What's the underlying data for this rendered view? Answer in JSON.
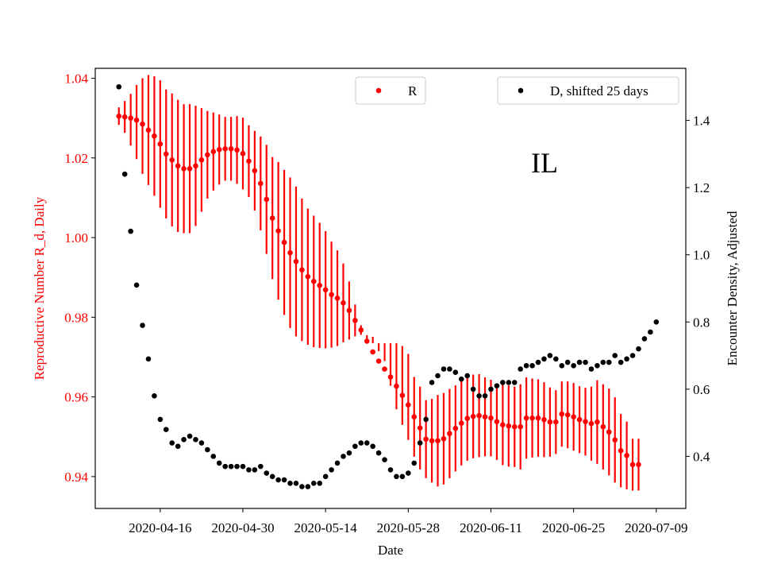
{
  "chart_data": {
    "type": "scatter",
    "title": "",
    "annotation": "IL",
    "xlabel": "Date",
    "ylabel_left": "Reproductive Number R_d, Daily",
    "ylabel_right": "Encounter Density, Adjusted",
    "x_ticks": [
      "2020-04-16",
      "2020-04-30",
      "2020-05-14",
      "2020-05-28",
      "2020-06-11",
      "2020-06-25",
      "2020-07-09"
    ],
    "x_range": [
      "2020-04-05",
      "2020-07-14"
    ],
    "y_left_ticks": [
      "0.94",
      "0.96",
      "0.98",
      "1.00",
      "1.02",
      "1.04"
    ],
    "y_left_range": [
      0.932,
      1.0425
    ],
    "y_right_ticks": [
      "0.4",
      "0.6",
      "0.8",
      "1.0",
      "1.2",
      "1.4"
    ],
    "y_right_range": [
      0.245,
      1.555
    ],
    "grid": false,
    "legend_r_placement": "top-center",
    "legend_d_placement": "top-right",
    "series": [
      {
        "name": "R",
        "color": "#ff0000",
        "axis": "left",
        "start_date": "2020-04-09",
        "values": [
          1.0305,
          1.0303,
          1.03,
          1.0295,
          1.0285,
          1.027,
          1.0255,
          1.0235,
          1.021,
          1.0195,
          1.018,
          1.0173,
          1.0173,
          1.018,
          1.0195,
          1.0208,
          1.0216,
          1.0221,
          1.0223,
          1.0223,
          1.022,
          1.0211,
          1.0192,
          1.0168,
          1.0136,
          1.0096,
          1.0049,
          1.0017,
          0.9988,
          0.9962,
          0.994,
          0.9919,
          0.9902,
          0.989,
          0.988,
          0.9869,
          0.9857,
          0.9848,
          0.9836,
          0.9817,
          0.9792,
          0.9768,
          0.974,
          0.9713,
          0.969,
          0.967,
          0.965,
          0.9627,
          0.9604,
          0.958,
          0.955,
          0.9522,
          0.9494,
          0.949,
          0.949,
          0.9495,
          0.9508,
          0.9521,
          0.9534,
          0.9546,
          0.9551,
          0.9553,
          0.955,
          0.9547,
          0.9538,
          0.953,
          0.9527,
          0.9525,
          0.9525,
          0.9547,
          0.9547,
          0.9547,
          0.9543,
          0.9537,
          0.9537,
          0.9557,
          0.9555,
          0.955,
          0.9543,
          0.9538,
          0.9533,
          0.9537,
          0.9525,
          0.9512,
          0.9492,
          0.9465,
          0.9453,
          0.943,
          0.943
        ],
        "error_low": [
          1.0283,
          1.0263,
          1.0231,
          1.0197,
          1.016,
          1.0132,
          1.0105,
          1.0075,
          1.0048,
          1.0028,
          1.0014,
          1.0011,
          1.0011,
          1.0029,
          1.0065,
          1.0098,
          1.0118,
          1.0133,
          1.0143,
          1.0143,
          1.0135,
          1.0121,
          1.0102,
          1.0068,
          1.0018,
          0.9959,
          0.9896,
          0.9844,
          0.9806,
          0.9773,
          0.9752,
          0.974,
          0.9731,
          0.9725,
          0.9723,
          0.9722,
          0.9724,
          0.9728,
          0.9737,
          0.9744,
          0.9752,
          0.9756,
          0.9755,
          0.9751,
          0.9715,
          0.969,
          0.9628,
          0.9569,
          0.953,
          0.9492,
          0.945,
          0.9418,
          0.9396,
          0.9385,
          0.9375,
          0.938,
          0.9396,
          0.9413,
          0.9428,
          0.944,
          0.9446,
          0.9449,
          0.9451,
          0.9451,
          0.9442,
          0.9429,
          0.9425,
          0.9424,
          0.9418,
          0.9445,
          0.9448,
          0.945,
          0.9449,
          0.945,
          0.9457,
          0.9475,
          0.9471,
          0.9465,
          0.9459,
          0.9453,
          0.944,
          0.9432,
          0.9418,
          0.9403,
          0.9385,
          0.9373,
          0.9368,
          0.9365,
          0.9365
        ],
        "error_high": [
          1.0327,
          1.0343,
          1.0361,
          1.0383,
          1.04,
          1.0408,
          1.0405,
          1.0395,
          1.0372,
          1.0362,
          1.0346,
          1.0335,
          1.0335,
          1.0331,
          1.0325,
          1.0318,
          1.0314,
          1.0309,
          1.0303,
          1.0303,
          1.0305,
          1.0301,
          1.0282,
          1.0268,
          1.0254,
          1.0233,
          1.0202,
          1.019,
          1.017,
          1.0151,
          1.0128,
          1.0098,
          1.0073,
          1.0055,
          1.0037,
          1.0016,
          0.999,
          0.9968,
          0.9935,
          0.989,
          0.9832,
          0.978,
          0.9745,
          0.9735,
          0.9735,
          0.9735,
          0.9735,
          0.9735,
          0.9728,
          0.9708,
          0.965,
          0.9626,
          0.9592,
          0.9595,
          0.9605,
          0.961,
          0.962,
          0.9629,
          0.964,
          0.9652,
          0.9656,
          0.9657,
          0.9649,
          0.9643,
          0.9634,
          0.9631,
          0.9629,
          0.9626,
          0.9632,
          0.9649,
          0.9646,
          0.9644,
          0.9637,
          0.9624,
          0.9617,
          0.9639,
          0.9639,
          0.9635,
          0.9627,
          0.9623,
          0.9626,
          0.9642,
          0.9632,
          0.9621,
          0.9599,
          0.9557,
          0.9538,
          0.9495,
          0.9495
        ]
      },
      {
        "name": "D, shifted 25 days",
        "color": "#000000",
        "axis": "right",
        "start_date": "2020-04-09",
        "values": [
          1.5,
          1.24,
          1.07,
          0.91,
          0.79,
          0.69,
          0.58,
          0.51,
          0.48,
          0.44,
          0.43,
          0.45,
          0.46,
          0.45,
          0.44,
          0.42,
          0.4,
          0.38,
          0.37,
          0.37,
          0.37,
          0.37,
          0.36,
          0.36,
          0.37,
          0.35,
          0.34,
          0.33,
          0.33,
          0.32,
          0.32,
          0.31,
          0.31,
          0.32,
          0.32,
          0.34,
          0.36,
          0.38,
          0.4,
          0.41,
          0.43,
          0.44,
          0.44,
          0.43,
          0.41,
          0.39,
          0.36,
          0.34,
          0.34,
          0.35,
          0.38,
          0.44,
          0.51,
          0.62,
          0.64,
          0.66,
          0.66,
          0.65,
          0.63,
          0.64,
          0.6,
          0.58,
          0.58,
          0.6,
          0.61,
          0.62,
          0.62,
          0.62,
          0.66,
          0.67,
          0.67,
          0.68,
          0.69,
          0.7,
          0.69,
          0.67,
          0.68,
          0.67,
          0.68,
          0.68,
          0.66,
          0.67,
          0.68,
          0.68,
          0.7,
          0.68,
          0.69,
          0.7,
          0.72,
          0.75,
          0.77,
          0.8
        ]
      }
    ]
  }
}
